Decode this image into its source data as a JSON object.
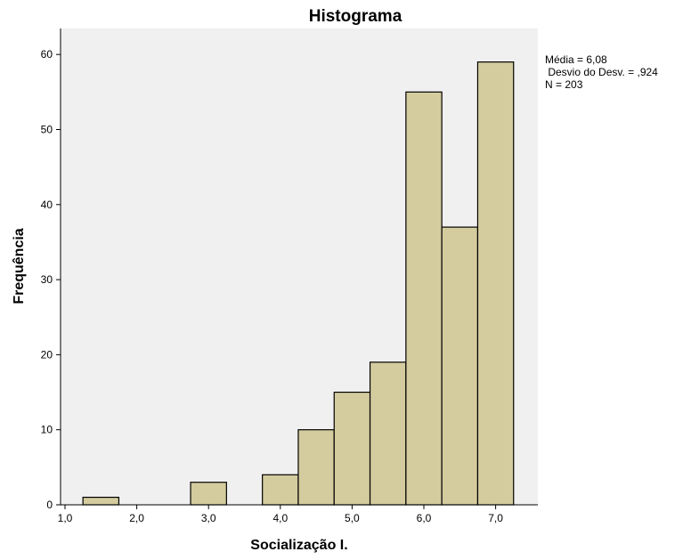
{
  "chart_data": {
    "type": "bar",
    "title": "Histograma",
    "xlabel": "Socialização I.",
    "ylabel": "Frequência",
    "bin_width": 0.5,
    "bins": [
      {
        "x0": 1.25,
        "x1": 1.75,
        "count": 1
      },
      {
        "x0": 1.75,
        "x1": 2.25,
        "count": 0
      },
      {
        "x0": 2.25,
        "x1": 2.75,
        "count": 0
      },
      {
        "x0": 2.75,
        "x1": 3.25,
        "count": 3
      },
      {
        "x0": 3.25,
        "x1": 3.75,
        "count": 0
      },
      {
        "x0": 3.75,
        "x1": 4.25,
        "count": 4
      },
      {
        "x0": 4.25,
        "x1": 4.75,
        "count": 10
      },
      {
        "x0": 4.75,
        "x1": 5.25,
        "count": 15
      },
      {
        "x0": 5.25,
        "x1": 5.75,
        "count": 19
      },
      {
        "x0": 5.75,
        "x1": 6.25,
        "count": 55
      },
      {
        "x0": 6.25,
        "x1": 6.75,
        "count": 37
      },
      {
        "x0": 6.75,
        "x1": 7.25,
        "count": 59
      }
    ],
    "xlim": [
      1.0,
      7.5
    ],
    "ylim": [
      0,
      63
    ],
    "x_ticks": [
      {
        "value": 1.0,
        "label": "1,0"
      },
      {
        "value": 2.0,
        "label": "2,0"
      },
      {
        "value": 3.0,
        "label": "3,0"
      },
      {
        "value": 4.0,
        "label": "4,0"
      },
      {
        "value": 5.0,
        "label": "5,0"
      },
      {
        "value": 6.0,
        "label": "6,0"
      },
      {
        "value": 7.0,
        "label": "7,0"
      }
    ],
    "y_ticks": [
      {
        "value": 0,
        "label": "0"
      },
      {
        "value": 10,
        "label": "10"
      },
      {
        "value": 20,
        "label": "20"
      },
      {
        "value": 30,
        "label": "30"
      },
      {
        "value": 40,
        "label": "40"
      },
      {
        "value": 50,
        "label": "50"
      },
      {
        "value": 60,
        "label": "60"
      }
    ],
    "grid": false,
    "stats": {
      "mean": "Média = 6,08",
      "std": " Desvio do Desv. = ,924",
      "n": "N = 203"
    },
    "colors": {
      "bar_fill": "#D4CC9E",
      "bar_stroke": "#000000",
      "plot_bg": "#F0F0F0",
      "axis": "#000000"
    }
  }
}
